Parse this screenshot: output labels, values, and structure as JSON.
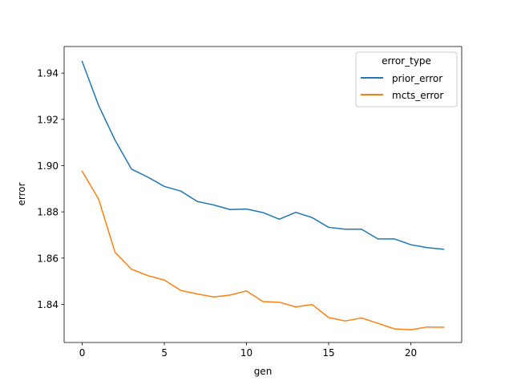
{
  "chart_data": {
    "type": "line",
    "title": "",
    "xlabel": "gen",
    "ylabel": "error",
    "xlim": [
      -1.1,
      23.1
    ],
    "ylim": [
      1.8235,
      1.9515
    ],
    "x": [
      0,
      1,
      2,
      3,
      4,
      5,
      6,
      7,
      8,
      9,
      10,
      11,
      12,
      13,
      14,
      15,
      16,
      17,
      18,
      19,
      20,
      21,
      22
    ],
    "xticks": [
      0,
      5,
      10,
      15,
      20
    ],
    "yticks": [
      1.84,
      1.86,
      1.88,
      1.9,
      1.92,
      1.94
    ],
    "ytick_labels": [
      "1.84",
      "1.86",
      "1.88",
      "1.90",
      "1.92",
      "1.94"
    ],
    "grid": false,
    "legend": {
      "title": "error_type",
      "placement": "top-right"
    },
    "series": [
      {
        "name": "prior_error",
        "color": "#1f77b4",
        "values": [
          1.945,
          1.926,
          1.911,
          1.8985,
          1.895,
          1.891,
          1.889,
          1.8845,
          1.883,
          1.881,
          1.8812,
          1.8797,
          1.8768,
          1.8798,
          1.8775,
          1.8733,
          1.8725,
          1.8725,
          1.8683,
          1.8683,
          1.8658,
          1.8645,
          1.8638
        ]
      },
      {
        "name": "mcts_error",
        "color": "#ff7f0e",
        "values": [
          1.8975,
          1.8855,
          1.8625,
          1.8552,
          1.8524,
          1.8505,
          1.846,
          1.8445,
          1.8432,
          1.844,
          1.8458,
          1.8412,
          1.8409,
          1.8389,
          1.8399,
          1.8343,
          1.8328,
          1.8341,
          1.8318,
          1.8294,
          1.829,
          1.8302,
          1.8301
        ]
      }
    ]
  }
}
